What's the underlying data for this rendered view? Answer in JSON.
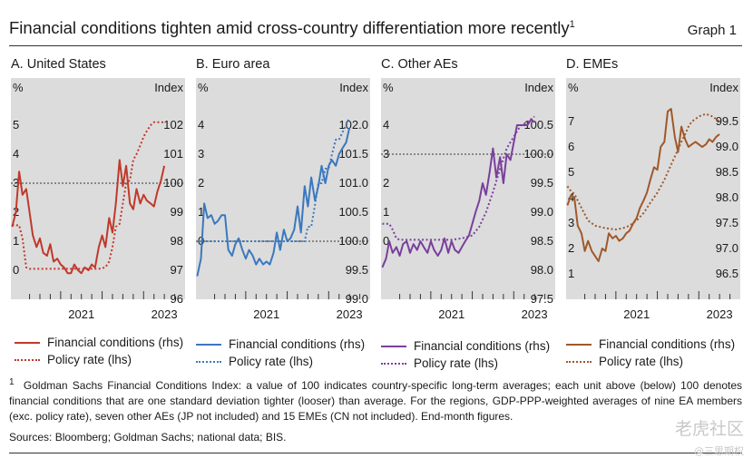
{
  "header": {
    "title": "Financial conditions tighten amid cross-country differentiation more recently",
    "title_sup": "1",
    "graph_label": "Graph 1"
  },
  "colors": {
    "plot_bg": "#dcdcdc",
    "us": "#c0392b",
    "ea": "#3a78bf",
    "oae": "#7a3f9d",
    "eme": "#a0582a"
  },
  "chart_data": [
    {
      "id": "us",
      "panel_title": "A. United States",
      "type": "line",
      "left_unit": "%",
      "right_unit": "Index",
      "left_ticks": [
        "0",
        "1",
        "2",
        "3",
        "4",
        "5"
      ],
      "right_ticks": [
        "96",
        "97",
        "98",
        "99",
        "100",
        "101",
        "102"
      ],
      "ylim_left": [
        -1,
        6
      ],
      "ylim_right": [
        96,
        103
      ],
      "x_range": [
        2019.8,
        2024.0
      ],
      "x_labels": [
        "2021",
        "2023"
      ],
      "reference_line_right": 100,
      "series": [
        {
          "name": "Financial conditions (rhs)",
          "axis": "right",
          "style": "solid",
          "x": [
            2019.83,
            2019.92,
            2020.0,
            2020.08,
            2020.17,
            2020.25,
            2020.33,
            2020.42,
            2020.5,
            2020.58,
            2020.67,
            2020.75,
            2020.83,
            2020.92,
            2021.0,
            2021.08,
            2021.17,
            2021.25,
            2021.33,
            2021.42,
            2021.5,
            2021.58,
            2021.67,
            2021.75,
            2021.83,
            2021.92,
            2022.0,
            2022.08,
            2022.17,
            2022.25,
            2022.33,
            2022.42,
            2022.5,
            2022.58,
            2022.67,
            2022.75,
            2022.83,
            2022.92,
            2023.0,
            2023.08,
            2023.17,
            2023.25,
            2023.33,
            2023.42,
            2023.5
          ],
          "y": [
            98.5,
            99.0,
            100.4,
            99.6,
            99.8,
            99.0,
            98.2,
            97.8,
            98.1,
            97.6,
            97.5,
            97.9,
            97.3,
            97.4,
            97.2,
            97.1,
            96.9,
            96.9,
            97.2,
            97.0,
            96.9,
            97.1,
            97.0,
            97.2,
            97.1,
            97.8,
            98.2,
            97.8,
            98.8,
            98.3,
            99.3,
            100.8,
            99.9,
            100.6,
            99.3,
            99.1,
            99.8,
            99.3,
            99.6,
            99.4,
            99.3,
            99.2,
            99.7,
            100.1,
            100.6
          ]
        },
        {
          "name": "Policy rate (lhs)",
          "axis": "left",
          "style": "dotted",
          "x": [
            2019.83,
            2019.92,
            2020.0,
            2020.08,
            2020.17,
            2020.25,
            2020.5,
            2020.75,
            2021.0,
            2021.25,
            2021.5,
            2021.75,
            2021.92,
            2022.08,
            2022.17,
            2022.25,
            2022.33,
            2022.42,
            2022.5,
            2022.58,
            2022.67,
            2022.75,
            2022.83,
            2022.92,
            2023.0,
            2023.08,
            2023.17,
            2023.25,
            2023.33,
            2023.42,
            2023.5
          ],
          "y": [
            1.55,
            1.55,
            1.55,
            1.1,
            0.1,
            0.05,
            0.05,
            0.05,
            0.05,
            0.05,
            0.05,
            0.05,
            0.05,
            0.1,
            0.3,
            0.8,
            1.5,
            1.6,
            2.3,
            3.0,
            3.1,
            3.8,
            4.0,
            4.3,
            4.6,
            4.8,
            5.0,
            5.1,
            5.1,
            5.1,
            5.1
          ]
        }
      ]
    },
    {
      "id": "ea",
      "panel_title": "B. Euro area",
      "type": "line",
      "left_unit": "%",
      "right_unit": "Index",
      "left_ticks": [
        "0",
        "1",
        "2",
        "3",
        "4"
      ],
      "right_ticks": [
        "99.0",
        "99.5",
        "100.0",
        "100.5",
        "101.0",
        "101.5",
        "102.0"
      ],
      "ylim_left": [
        -2,
        5
      ],
      "ylim_right": [
        99.0,
        102.5
      ],
      "x_range": [
        2019.8,
        2024.0
      ],
      "x_labels": [
        "2021",
        "2023"
      ],
      "reference_line_right": 100.0,
      "series": [
        {
          "name": "Financial conditions (rhs)",
          "axis": "right",
          "style": "solid",
          "x": [
            2019.83,
            2019.92,
            2020.0,
            2020.08,
            2020.17,
            2020.25,
            2020.33,
            2020.42,
            2020.5,
            2020.58,
            2020.67,
            2020.75,
            2020.83,
            2020.92,
            2021.0,
            2021.08,
            2021.17,
            2021.25,
            2021.33,
            2021.42,
            2021.5,
            2021.58,
            2021.67,
            2021.75,
            2021.83,
            2021.92,
            2022.0,
            2022.08,
            2022.17,
            2022.25,
            2022.33,
            2022.42,
            2022.5,
            2022.58,
            2022.67,
            2022.75,
            2022.83,
            2022.92,
            2023.0,
            2023.08,
            2023.17,
            2023.25,
            2023.33,
            2023.42,
            2023.5
          ],
          "y": [
            99.4,
            99.7,
            100.65,
            100.4,
            100.45,
            100.3,
            100.35,
            100.45,
            100.45,
            99.85,
            99.75,
            99.95,
            100.05,
            99.85,
            99.7,
            99.85,
            99.75,
            99.6,
            99.7,
            99.6,
            99.65,
            99.6,
            99.8,
            100.15,
            99.85,
            100.2,
            100.0,
            100.05,
            100.2,
            100.6,
            100.15,
            100.95,
            100.6,
            101.1,
            100.7,
            100.95,
            101.3,
            101.0,
            101.3,
            101.4,
            101.3,
            101.5,
            101.6,
            101.7,
            101.95
          ]
        },
        {
          "name": "Policy rate (lhs)",
          "axis": "left",
          "style": "dotted",
          "x": [
            2019.83,
            2020.0,
            2020.5,
            2021.0,
            2021.5,
            2022.0,
            2022.42,
            2022.5,
            2022.58,
            2022.67,
            2022.75,
            2022.83,
            2022.92,
            2023.0,
            2023.08,
            2023.17,
            2023.25,
            2023.33,
            2023.42,
            2023.5
          ],
          "y": [
            0,
            0,
            0,
            0,
            0,
            0,
            0,
            0.5,
            0.5,
            1.25,
            2.0,
            2.0,
            2.5,
            2.5,
            3.0,
            3.5,
            3.5,
            3.75,
            4.0,
            4.25
          ]
        }
      ]
    },
    {
      "id": "oae",
      "panel_title": "C. Other AEs",
      "type": "line",
      "left_unit": "%",
      "right_unit": "Index",
      "left_ticks": [
        "0",
        "1",
        "2",
        "3",
        "4"
      ],
      "right_ticks": [
        "97.5",
        "98.0",
        "98.5",
        "99.0",
        "99.5",
        "100.0",
        "100.5"
      ],
      "ylim_left": [
        -2,
        5
      ],
      "ylim_right": [
        97.5,
        101.0
      ],
      "x_range": [
        2019.8,
        2024.0
      ],
      "x_labels": [
        "2021",
        "2023"
      ],
      "reference_line_right": 100.0,
      "series": [
        {
          "name": "Financial conditions (rhs)",
          "axis": "right",
          "style": "solid",
          "x": [
            2019.83,
            2019.92,
            2020.0,
            2020.08,
            2020.17,
            2020.25,
            2020.33,
            2020.42,
            2020.5,
            2020.58,
            2020.67,
            2020.75,
            2020.83,
            2020.92,
            2021.0,
            2021.08,
            2021.17,
            2021.25,
            2021.33,
            2021.42,
            2021.5,
            2021.58,
            2021.67,
            2021.75,
            2021.83,
            2021.92,
            2022.0,
            2022.08,
            2022.17,
            2022.25,
            2022.33,
            2022.42,
            2022.5,
            2022.58,
            2022.67,
            2022.75,
            2022.83,
            2022.92,
            2023.0,
            2023.08,
            2023.17,
            2023.25,
            2023.33,
            2023.42,
            2023.5
          ],
          "y": [
            98.05,
            98.2,
            98.5,
            98.3,
            98.4,
            98.25,
            98.45,
            98.5,
            98.3,
            98.45,
            98.35,
            98.5,
            98.4,
            98.3,
            98.5,
            98.35,
            98.25,
            98.35,
            98.55,
            98.3,
            98.5,
            98.35,
            98.3,
            98.4,
            98.5,
            98.6,
            98.8,
            99.0,
            99.2,
            99.5,
            99.3,
            99.7,
            100.1,
            99.6,
            99.95,
            99.5,
            100.0,
            99.9,
            100.2,
            100.5,
            100.5,
            100.5,
            100.5,
            100.6,
            100.55
          ]
        },
        {
          "name": "Policy rate (lhs)",
          "axis": "left",
          "style": "dotted",
          "x": [
            2019.83,
            2019.92,
            2020.0,
            2020.08,
            2020.17,
            2020.25,
            2020.5,
            2021.0,
            2021.5,
            2021.75,
            2022.0,
            2022.17,
            2022.33,
            2022.5,
            2022.67,
            2022.83,
            2023.0,
            2023.17,
            2023.33,
            2023.5
          ],
          "y": [
            0.6,
            0.6,
            0.6,
            0.4,
            0.1,
            0.05,
            0.05,
            0.05,
            0.05,
            0.1,
            0.2,
            0.5,
            1.0,
            1.7,
            2.5,
            3.2,
            3.6,
            4.0,
            4.1,
            4.3
          ]
        }
      ]
    },
    {
      "id": "eme",
      "panel_title": "D. EMEs",
      "type": "line",
      "left_unit": "%",
      "right_unit": "Index",
      "left_ticks": [
        "1",
        "2",
        "3",
        "4",
        "5",
        "6",
        "7"
      ],
      "right_ticks": [
        "96.5",
        "97.0",
        "97.5",
        "98.0",
        "98.5",
        "99.0",
        "99.5"
      ],
      "ylim_left": [
        0,
        8
      ],
      "ylim_right": [
        96.0,
        100.0
      ],
      "x_range": [
        2019.8,
        2024.0
      ],
      "x_labels": [
        "2021",
        "2023"
      ],
      "series": [
        {
          "name": "Financial conditions (rhs)",
          "axis": "right",
          "style": "solid",
          "x": [
            2019.83,
            2019.92,
            2020.0,
            2020.08,
            2020.17,
            2020.25,
            2020.33,
            2020.42,
            2020.5,
            2020.58,
            2020.67,
            2020.75,
            2020.83,
            2020.92,
            2021.0,
            2021.08,
            2021.17,
            2021.25,
            2021.33,
            2021.42,
            2021.5,
            2021.58,
            2021.67,
            2021.75,
            2021.83,
            2021.92,
            2022.0,
            2022.08,
            2022.17,
            2022.25,
            2022.33,
            2022.42,
            2022.5,
            2022.58,
            2022.67,
            2022.75,
            2022.83,
            2022.92,
            2023.0,
            2023.08,
            2023.17,
            2023.25,
            2023.33,
            2023.42,
            2023.5
          ],
          "y": [
            97.85,
            98.05,
            98.0,
            97.45,
            97.3,
            96.95,
            97.15,
            96.95,
            96.85,
            96.75,
            97.0,
            96.95,
            97.3,
            97.2,
            97.25,
            97.15,
            97.2,
            97.3,
            97.35,
            97.5,
            97.6,
            97.8,
            97.95,
            98.1,
            98.35,
            98.6,
            98.55,
            99.0,
            99.1,
            99.7,
            99.75,
            99.2,
            98.9,
            99.4,
            99.15,
            99.0,
            99.05,
            99.1,
            99.05,
            99.0,
            99.05,
            99.15,
            99.1,
            99.2,
            99.25
          ]
        },
        {
          "name": "Policy rate (lhs)",
          "axis": "left",
          "style": "dotted",
          "x": [
            2019.83,
            2019.92,
            2020.0,
            2020.17,
            2020.33,
            2020.5,
            2020.75,
            2021.0,
            2021.17,
            2021.33,
            2021.5,
            2021.67,
            2021.83,
            2022.0,
            2022.17,
            2022.33,
            2022.5,
            2022.58,
            2022.67,
            2022.75,
            2022.83,
            2022.92,
            2023.0,
            2023.17,
            2023.33,
            2023.5
          ],
          "y": [
            4.45,
            4.25,
            4.15,
            3.6,
            3.1,
            2.9,
            2.8,
            2.75,
            2.8,
            2.9,
            3.1,
            3.4,
            3.8,
            4.2,
            4.7,
            5.3,
            5.9,
            6.2,
            6.5,
            6.8,
            7.0,
            7.1,
            7.2,
            7.3,
            7.2,
            7.0
          ]
        }
      ]
    }
  ],
  "legend": {
    "financial": "Financial conditions (rhs)",
    "policy": "Policy rate (lhs)"
  },
  "footnote": {
    "marker": "1",
    "text": "Goldman Sachs Financial Conditions Index: a value of 100 indicates country-specific long-term averages; each unit above (below) 100 denotes financial conditions that are one standard deviation tighter (looser) than average. For the regions, GDP-PPP-weighted averages of nine EA members (exc. policy rate), seven other AEs (JP not included) and 15 EMEs (CN not included). End-month figures."
  },
  "sources": "Sources: Bloomberg; Goldman Sachs; national data; BIS.",
  "watermark": {
    "line1": "老虎社区",
    "line2": "@三思期权"
  }
}
